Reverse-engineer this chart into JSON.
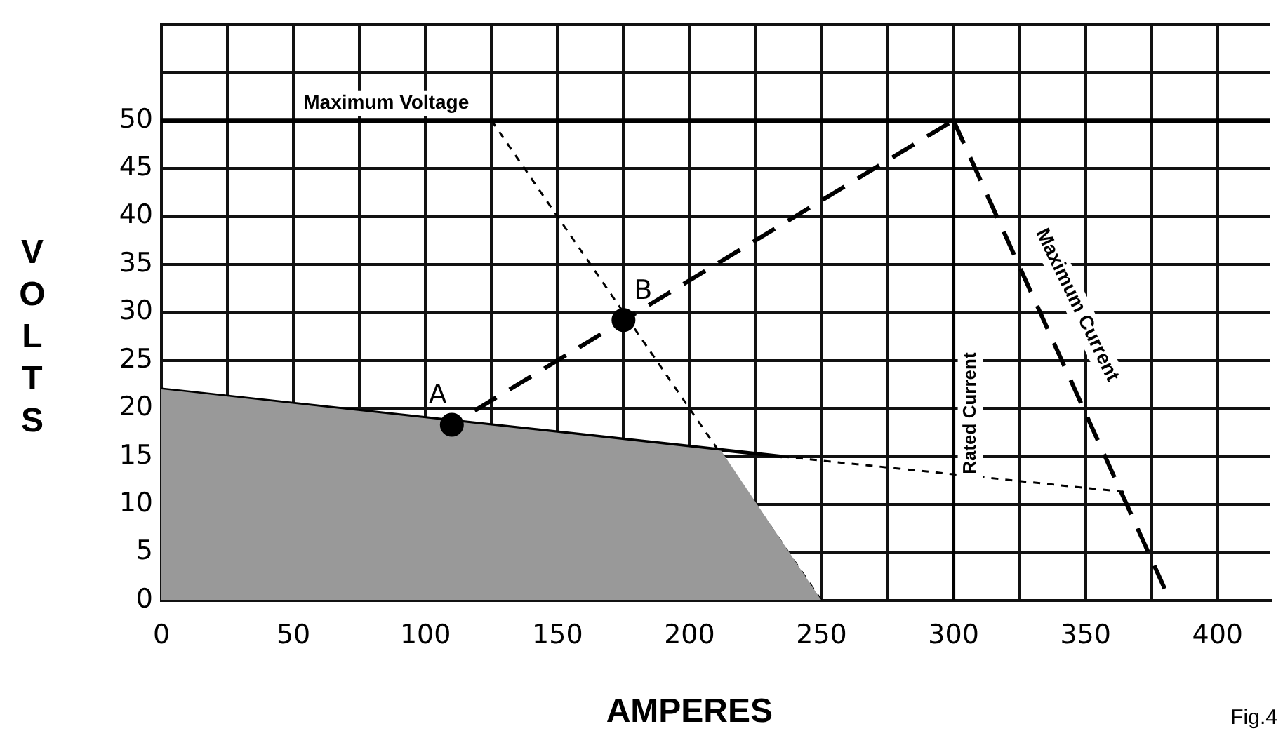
{
  "chart_data": {
    "type": "line",
    "xlabel": "AMPERES",
    "ylabel": "VOLTS",
    "xlim": [
      0,
      420
    ],
    "ylim": [
      0,
      60
    ],
    "xticks": [
      0,
      {
        "value": 25,
        "label": null
      },
      50,
      {
        "value": 75,
        "label": null
      },
      100,
      {
        "value": 125,
        "label": null
      },
      150,
      {
        "value": 175,
        "label": null
      },
      200,
      {
        "value": 225,
        "label": null
      },
      250,
      {
        "value": 275,
        "label": null
      },
      300,
      {
        "value": 325,
        "label": null
      },
      350,
      {
        "value": 375,
        "label": null
      },
      400
    ],
    "yticks": [
      0,
      5,
      10,
      15,
      20,
      25,
      30,
      35,
      40,
      45,
      50,
      {
        "value": 55,
        "label": null
      },
      {
        "value": 60,
        "label": null
      }
    ],
    "grid": true,
    "legend": false,
    "series": [
      {
        "type": "area",
        "color": "#999999",
        "x": [
          0,
          212,
          250
        ],
        "values": [
          22,
          15.6,
          0
        ]
      },
      {
        "color": "#000000",
        "line_style": "solid",
        "x": [
          0,
          235
        ],
        "values": [
          22,
          15
        ]
      },
      {
        "color": "#000000",
        "line_style": "dotted",
        "x": [
          235,
          365
        ],
        "values": [
          15,
          11.3
        ]
      },
      {
        "color": "#000000",
        "line_style": "dotted",
        "x": [
          125,
          250
        ],
        "values": [
          50,
          0
        ]
      },
      {
        "color": "#000000",
        "line_style": "dashed",
        "x": [
          0,
          300
        ],
        "values": [
          0,
          50
        ]
      },
      {
        "color": "#000000",
        "line_style": "dashed",
        "x": [
          300,
          382
        ],
        "values": [
          50,
          0
        ]
      },
      {
        "color": "#000000",
        "line_style": "solid",
        "x": [
          300,
          300
        ],
        "values": [
          0,
          50
        ]
      },
      {
        "type": "scatter",
        "color": "#000000",
        "marker": "circle",
        "x": [
          110,
          175
        ],
        "values": [
          18.3,
          29.2
        ]
      }
    ],
    "ref_lines": [
      {
        "axis": "y",
        "value": 50,
        "label": "Maximum Voltage",
        "color": "#000000"
      }
    ],
    "annotations": [
      {
        "text": "A",
        "x": 110,
        "y": 18.3
      },
      {
        "text": "B",
        "x": 175,
        "y": 29.2
      },
      {
        "text": "Rated Current",
        "x": 300,
        "y": 19.5
      },
      {
        "text": "Maximum Current",
        "x": 334,
        "y": 29.3
      },
      "Fig.4"
    ]
  }
}
